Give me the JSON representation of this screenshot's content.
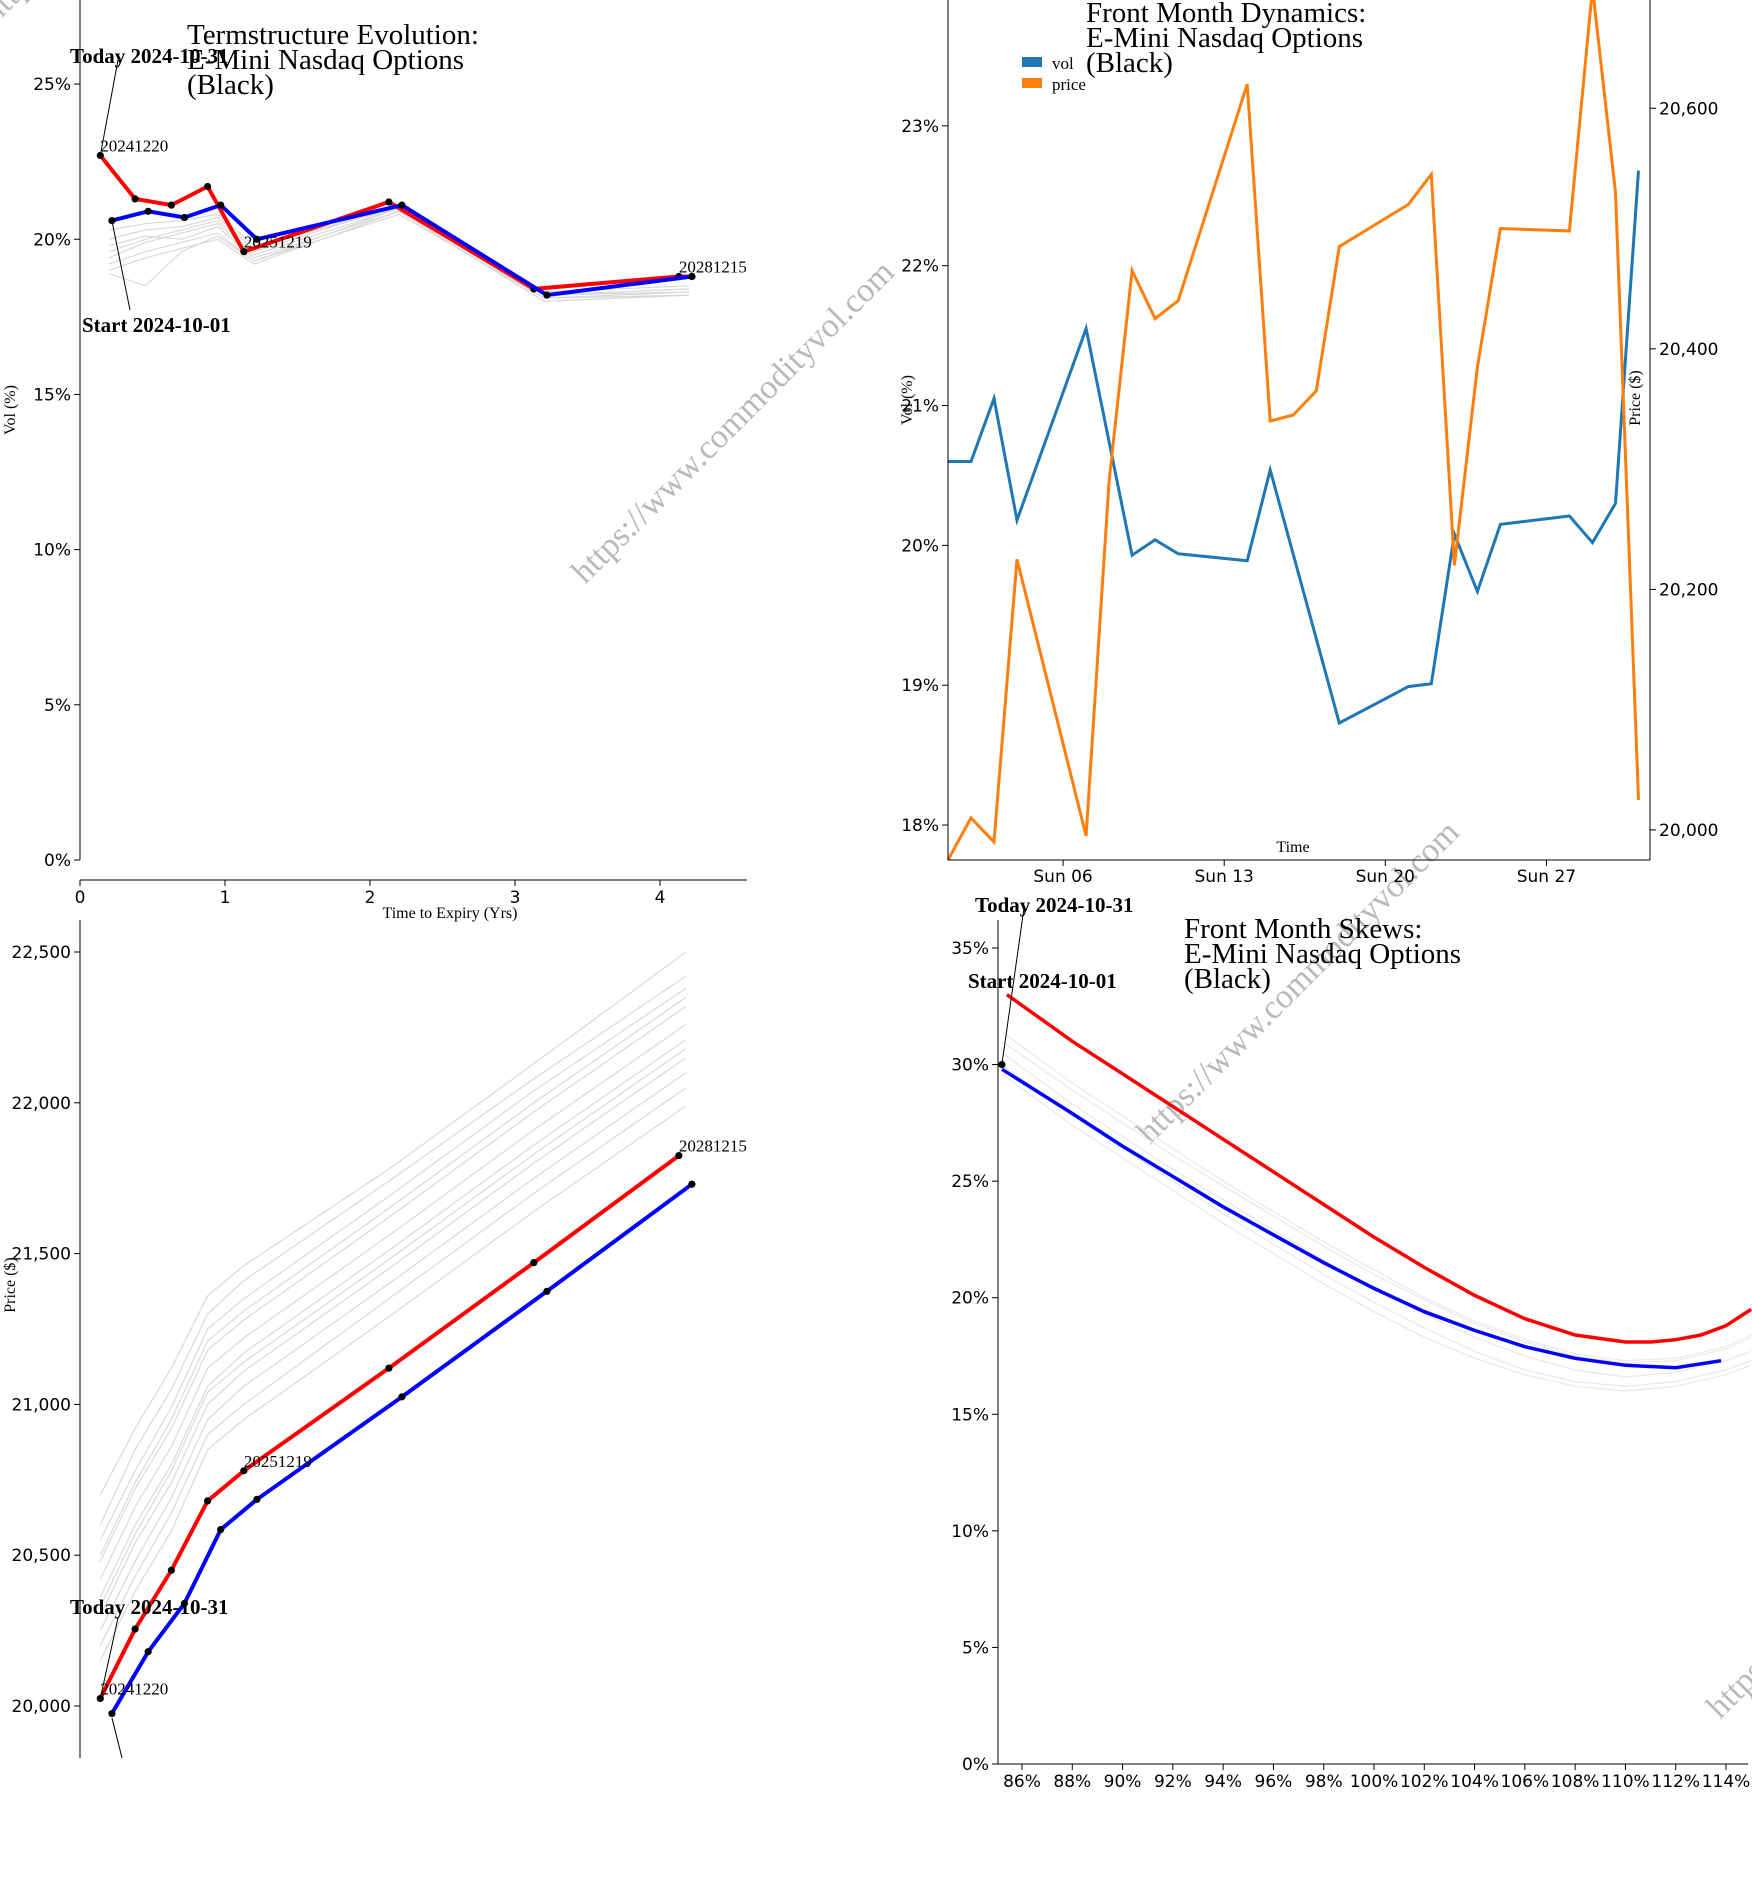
{
  "watermark": "https://www.commodityvol.com",
  "chart_data": [
    {
      "id": "termstructure",
      "type": "line",
      "title": [
        "Termstructure Evolution:",
        "E-Mini Nasdaq Options",
        "(Black)"
      ],
      "xlabel": "Time to Expiry (Yrs)",
      "ylabel": "Vol (%)",
      "xlim": [
        0,
        4.6
      ],
      "ylim": [
        0,
        27
      ],
      "xticks": [
        0,
        1,
        2,
        3,
        4
      ],
      "yticks": [
        0,
        5,
        10,
        15,
        20,
        25
      ],
      "yformat": "pct",
      "series": [
        {
          "name": "Today 2024-10-31",
          "color": "#ff0000",
          "x": [
            0.14,
            0.38,
            0.63,
            0.88,
            1.13,
            2.13,
            3.13,
            4.13,
            4.22
          ],
          "y": [
            22.7,
            21.3,
            21.1,
            21.7,
            19.6,
            21.2,
            18.4,
            18.8,
            18.8
          ]
        },
        {
          "name": "Start 2024-10-01",
          "color": "#0000ff",
          "x": [
            0.22,
            0.47,
            0.72,
            0.97,
            1.22,
            2.22,
            3.22,
            4.22
          ],
          "y": [
            20.6,
            20.9,
            20.7,
            21.1,
            20.0,
            21.1,
            18.2,
            18.8
          ]
        }
      ],
      "history_x": [
        0.2,
        0.45,
        0.7,
        0.95,
        1.2,
        2.2,
        3.2,
        4.2
      ],
      "history": [
        [
          19.4,
          19.9,
          20.2,
          20.5,
          19.5,
          21.0,
          18.1,
          18.3
        ],
        [
          19.8,
          20.1,
          20.0,
          20.4,
          19.4,
          20.9,
          18.0,
          18.2
        ],
        [
          18.9,
          18.5,
          19.6,
          20.1,
          19.3,
          21.0,
          18.2,
          18.4
        ],
        [
          20.0,
          20.3,
          20.4,
          20.7,
          19.7,
          21.1,
          18.2,
          18.3
        ],
        [
          19.2,
          19.6,
          19.9,
          20.2,
          19.3,
          20.8,
          18.1,
          18.2
        ],
        [
          20.3,
          20.5,
          20.6,
          20.8,
          19.8,
          21.0,
          18.3,
          18.5
        ],
        [
          19.0,
          19.4,
          19.7,
          20.0,
          19.2,
          20.9,
          18.0,
          18.2
        ],
        [
          19.6,
          20.0,
          20.3,
          20.6,
          19.6,
          21.1,
          18.2,
          18.4
        ]
      ],
      "point_labels": [
        {
          "text": "20241220",
          "x": 0.14,
          "y": 22.7
        },
        {
          "text": "20251219",
          "x": 1.13,
          "y": 19.6
        },
        {
          "text": "20281215",
          "x": 4.13,
          "y": 18.8
        }
      ],
      "annotations": [
        {
          "text": "Today 2024-10-31",
          "x": 0.14,
          "y": 22.7
        },
        {
          "text": "Start 2024-10-01",
          "x": 0.22,
          "y": 20.6
        }
      ]
    },
    {
      "id": "dynamics",
      "type": "line",
      "title": [
        "Front Month Dynamics:",
        "E-Mini Nasdaq Options",
        "(Black)"
      ],
      "xlabel": "Time",
      "ylabel": "Vol (%)",
      "y2label": "Price ($)",
      "xlim": [
        1,
        31.5
      ],
      "ylim": [
        17.75,
        23.9
      ],
      "y2lim": [
        19975,
        20690
      ],
      "xticks": [
        {
          "v": 6,
          "label": "Sun 06"
        },
        {
          "v": 13,
          "label": "Sun 13"
        },
        {
          "v": 20,
          "label": "Sun 20"
        },
        {
          "v": 27,
          "label": "Sun 27"
        }
      ],
      "yticks": [
        18,
        19,
        20,
        21,
        22,
        23
      ],
      "y2ticks": [
        20000,
        20200,
        20400,
        20600
      ],
      "legend": [
        "vol",
        "price"
      ],
      "colors": {
        "vol": "#1f77b4",
        "price": "#ff7f0e"
      },
      "vol": {
        "x": [
          1,
          2,
          3,
          4,
          7,
          9,
          10,
          11,
          14,
          15,
          18,
          21,
          22,
          23,
          24,
          25,
          28,
          29,
          30,
          31
        ],
        "y": [
          20.6,
          20.6,
          21.05,
          20.18,
          21.55,
          19.93,
          20.04,
          19.94,
          19.89,
          20.54,
          18.73,
          18.99,
          19.01,
          20.08,
          19.67,
          20.15,
          20.21,
          20.02,
          20.3,
          22.68
        ]
      },
      "price": {
        "x": [
          1,
          2,
          3,
          4,
          7,
          8,
          9,
          10,
          11,
          14,
          15,
          16,
          17,
          18,
          21,
          22,
          23,
          24,
          25,
          28,
          29,
          30,
          31
        ],
        "y": [
          19975,
          20010,
          19990,
          20225,
          19995,
          20290,
          20465,
          20425,
          20440,
          20620,
          20340,
          20345,
          20365,
          20485,
          20520,
          20545,
          20220,
          20385,
          20500,
          20498,
          20700,
          20530,
          20025
        ]
      }
    },
    {
      "id": "forward",
      "type": "line",
      "title": [],
      "xlabel": "",
      "ylabel": "Price ($)",
      "xlim": [
        0,
        4.6
      ],
      "ylim": [
        19830,
        22640
      ],
      "yticks": [
        20000,
        20500,
        21000,
        21500,
        22000,
        22500
      ],
      "series": [
        {
          "name": "Today 2024-10-31",
          "color": "#ff0000",
          "x": [
            0.14,
            0.38,
            0.63,
            0.88,
            1.13,
            2.13,
            3.13,
            4.13
          ],
          "y": [
            20025,
            20255,
            20450,
            20680,
            20780,
            21120,
            21470,
            21825
          ]
        },
        {
          "name": "Start 2024-10-01",
          "color": "#0000ff",
          "x": [
            0.22,
            0.47,
            0.72,
            0.97,
            1.22,
            2.22,
            3.22,
            4.22
          ],
          "y": [
            19975,
            20180,
            20340,
            20585,
            20685,
            21025,
            21375,
            21730
          ]
        }
      ],
      "history_x": [
        0.14,
        0.38,
        0.63,
        0.88,
        1.13,
        2.13,
        3.13,
        4.18
      ],
      "history": [
        [
          20700,
          20920,
          21120,
          21360,
          21460,
          21780,
          22130,
          22500
        ],
        [
          20600,
          20850,
          21050,
          21300,
          21410,
          21740,
          22080,
          22420
        ],
        [
          20550,
          20780,
          20990,
          21250,
          21350,
          21690,
          22040,
          22380
        ],
        [
          20480,
          20720,
          20920,
          21180,
          21280,
          21620,
          21970,
          22320
        ],
        [
          20420,
          20660,
          20860,
          21120,
          21220,
          21560,
          21910,
          22260
        ],
        [
          20360,
          20600,
          20800,
          21060,
          21170,
          21510,
          21860,
          22210
        ],
        [
          20300,
          20540,
          20740,
          21000,
          21110,
          21450,
          21800,
          22150
        ],
        [
          20250,
          20480,
          20690,
          20950,
          21060,
          21400,
          21750,
          22100
        ],
        [
          20200,
          20430,
          20640,
          20900,
          21000,
          21350,
          21700,
          22050
        ],
        [
          20150,
          20380,
          20580,
          20850,
          20950,
          21290,
          21640,
          21990
        ],
        [
          20500,
          20740,
          20950,
          21210,
          21310,
          21650,
          22000,
          22350
        ],
        [
          20330,
          20570,
          20780,
          21040,
          21140,
          21480,
          21830,
          22180
        ]
      ],
      "point_labels": [
        {
          "text": "20241220",
          "x": 0.14,
          "y": 20025
        },
        {
          "text": "20251219",
          "x": 1.13,
          "y": 20780
        },
        {
          "text": "20281215",
          "x": 4.13,
          "y": 21825
        }
      ],
      "annotations": [
        {
          "text": "Today 2024-10-31",
          "x": 0.14,
          "y": 20025
        }
      ]
    },
    {
      "id": "skews",
      "type": "line",
      "title": [
        "Front Month Skews:",
        "E-Mini Nasdaq Options",
        "(Black)"
      ],
      "xlabel": "",
      "ylabel": "",
      "xlim": [
        85,
        115
      ],
      "ylim": [
        0,
        36.3
      ],
      "yticks": [
        0,
        5,
        10,
        15,
        20,
        25,
        30,
        35
      ],
      "xticks": [
        86,
        88,
        90,
        92,
        94,
        96,
        98,
        100,
        102,
        104,
        106,
        108,
        110,
        112,
        114
      ],
      "series": [
        {
          "name": "Today 2024-10-31",
          "color": "#ff0000",
          "x": [
            85.4,
            88,
            90,
            92,
            94,
            96,
            98,
            100,
            102,
            104,
            106,
            108,
            110,
            111,
            112,
            113,
            114,
            115
          ],
          "y": [
            33.0,
            31.0,
            29.6,
            28.2,
            26.8,
            25.4,
            24.0,
            22.6,
            21.3,
            20.1,
            19.1,
            18.4,
            18.1,
            18.1,
            18.2,
            18.4,
            18.8,
            19.5
          ]
        },
        {
          "name": "Start 2024-10-01",
          "color": "#0000ff",
          "x": [
            85.2,
            88,
            90,
            92,
            94,
            96,
            98,
            100,
            102,
            104,
            106,
            108,
            110,
            112,
            113.8
          ],
          "y": [
            29.8,
            27.9,
            26.5,
            25.2,
            23.9,
            22.7,
            21.5,
            20.4,
            19.4,
            18.6,
            17.9,
            17.4,
            17.1,
            17.0,
            17.3
          ]
        }
      ],
      "history_x": [
        85.2,
        88,
        90,
        92,
        94,
        96,
        98,
        100,
        102,
        104,
        106,
        108,
        110,
        112,
        114,
        115
      ],
      "history": [
        [
          31.0,
          28.9,
          27.5,
          26.1,
          24.8,
          23.5,
          22.2,
          21.0,
          19.9,
          18.9,
          18.1,
          17.5,
          17.2,
          17.3,
          17.8,
          18.3
        ],
        [
          30.5,
          28.3,
          26.9,
          25.5,
          24.2,
          22.9,
          21.6,
          20.4,
          19.3,
          18.3,
          17.5,
          16.9,
          16.6,
          16.8,
          17.3,
          17.7
        ],
        [
          30.0,
          27.8,
          26.4,
          25.0,
          23.6,
          22.3,
          21.0,
          19.8,
          18.7,
          17.7,
          16.9,
          16.4,
          16.2,
          16.4,
          16.9,
          17.3
        ],
        [
          29.6,
          27.4,
          26.0,
          24.6,
          23.2,
          21.9,
          20.6,
          19.4,
          18.3,
          17.4,
          16.7,
          16.2,
          16.0,
          16.2,
          16.7,
          17.1
        ],
        [
          31.4,
          29.2,
          27.8,
          26.4,
          25.0,
          23.7,
          22.4,
          21.2,
          20.0,
          19.0,
          18.2,
          17.6,
          17.3,
          17.4,
          17.9,
          18.4
        ]
      ],
      "annotations": [
        {
          "text": "Today 2024-10-31",
          "x": 85.4,
          "y": 33.0
        },
        {
          "text": "Start 2024-10-01",
          "x": 85.2,
          "y": 30.0
        }
      ]
    }
  ]
}
